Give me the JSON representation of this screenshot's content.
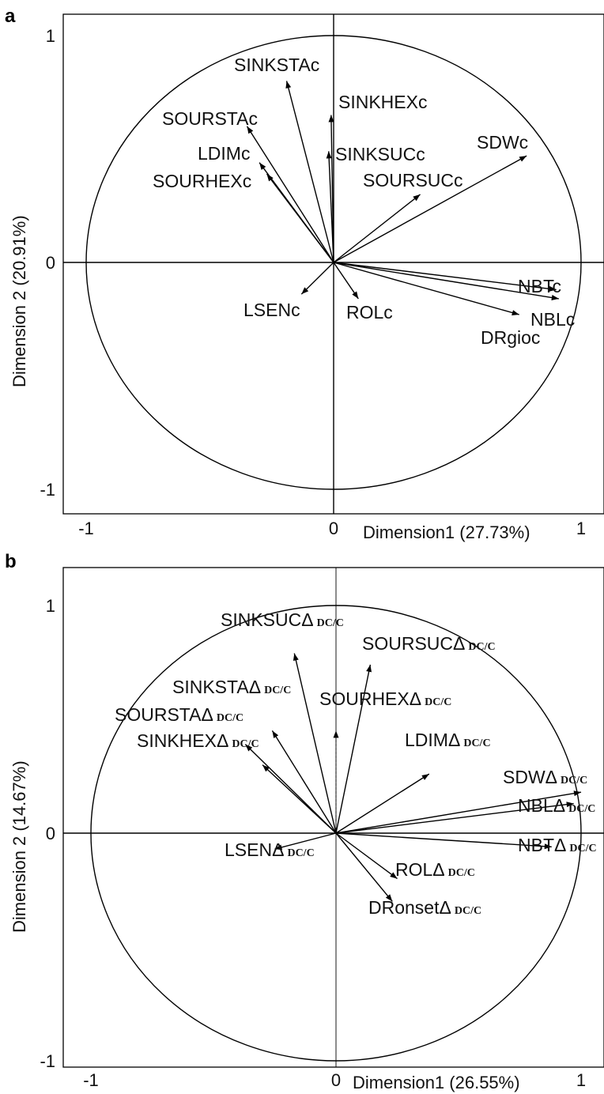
{
  "chart_data": [
    {
      "panel": "a",
      "type": "scatter",
      "subtype": "correlation-circle",
      "xlabel": "Dimension1 (27.73%)",
      "ylabel": "Dimension 2 (20.91%)",
      "xlim": [
        -1,
        1
      ],
      "ylim": [
        -1,
        1
      ],
      "xticks": [
        "-1",
        "0",
        "1"
      ],
      "yticks": [
        "1",
        "0",
        "-1"
      ],
      "unit_circle": true,
      "variables": [
        {
          "name": "SINKSTAc",
          "base": "SINKSTAc",
          "sub": "",
          "x": -0.19,
          "y": 0.8
        },
        {
          "name": "SINKHEXc",
          "base": "SINKHEXc",
          "sub": "",
          "x": -0.01,
          "y": 0.65
        },
        {
          "name": "SOURSTAc",
          "base": "SOURSTAc",
          "sub": "",
          "x": -0.35,
          "y": 0.6
        },
        {
          "name": "LDIMc",
          "base": "LDIMc",
          "sub": "",
          "x": -0.3,
          "y": 0.44
        },
        {
          "name": "SOURHEXc",
          "base": "SOURHEXc",
          "sub": "",
          "x": -0.27,
          "y": 0.39
        },
        {
          "name": "SINKSUCc",
          "base": "SINKSUCc",
          "sub": "",
          "x": -0.02,
          "y": 0.49
        },
        {
          "name": "SOURSUCc",
          "base": "SOURSUCc",
          "sub": "",
          "x": 0.35,
          "y": 0.3
        },
        {
          "name": "SDWc",
          "base": "SDWc",
          "sub": "",
          "x": 0.78,
          "y": 0.47
        },
        {
          "name": "NBTc",
          "base": "NBTc",
          "sub": "",
          "x": 0.9,
          "y": -0.12
        },
        {
          "name": "NBLc",
          "base": "NBLc",
          "sub": "",
          "x": 0.91,
          "y": -0.16
        },
        {
          "name": "DRgioc",
          "base": "DRgioc",
          "sub": "",
          "x": 0.75,
          "y": -0.23
        },
        {
          "name": "LSENc",
          "base": "LSENc",
          "sub": "",
          "x": -0.13,
          "y": -0.14
        },
        {
          "name": "ROLc",
          "base": "ROLc",
          "sub": "",
          "x": 0.1,
          "y": -0.16
        }
      ]
    },
    {
      "panel": "b",
      "type": "scatter",
      "subtype": "correlation-circle",
      "xlabel": "Dimension1 (26.55%)",
      "ylabel": "Dimension 2 (14.67%)",
      "xlim": [
        -1,
        1
      ],
      "ylim": [
        -1,
        1
      ],
      "xticks": [
        "-1",
        "0",
        "1"
      ],
      "yticks": [
        "1",
        "0",
        "-1"
      ],
      "unit_circle": true,
      "variables": [
        {
          "name": "SINKSUCΔ DC/C",
          "base": "SINKSUCΔ",
          "sub": "DC/C",
          "x": -0.17,
          "y": 0.79
        },
        {
          "name": "SOURSUCΔ DC/C",
          "base": "SOURSUCΔ",
          "sub": "DC/C",
          "x": 0.14,
          "y": 0.74
        },
        {
          "name": "SOURHEXΔ DC/C",
          "base": "SOURHEXΔ",
          "sub": "DC/C",
          "x": 0.0,
          "y": 0.45
        },
        {
          "name": "SINKSTAΔ DC/C",
          "base": "SINKSTAΔ",
          "sub": "DC/C",
          "x": -0.26,
          "y": 0.45
        },
        {
          "name": "SOURSTAΔ DC/C",
          "base": "SOURSTAΔ",
          "sub": "DC/C",
          "x": -0.37,
          "y": 0.39
        },
        {
          "name": "SINKHEXΔ DC/C",
          "base": "SINKHEXΔ",
          "sub": "DC/C",
          "x": -0.3,
          "y": 0.3
        },
        {
          "name": "LDIMΔ DC/C",
          "base": "LDIMΔ",
          "sub": "DC/C",
          "x": 0.38,
          "y": 0.26
        },
        {
          "name": "SDWΔ DC/C",
          "base": "SDWΔ",
          "sub": "DC/C",
          "x": 1.0,
          "y": 0.18
        },
        {
          "name": "NBLΔ DC/C",
          "base": "NBLΔ",
          "sub": "DC/C",
          "x": 0.97,
          "y": 0.13
        },
        {
          "name": "NBTΔ DC/C",
          "base": "NBTΔ",
          "sub": "DC/C",
          "x": 0.88,
          "y": -0.06
        },
        {
          "name": "LSENΔ DC/C",
          "base": "LSENΔ",
          "sub": "DC/C",
          "x": -0.25,
          "y": -0.07
        },
        {
          "name": "ROLΔ DC/C",
          "base": "ROLΔ",
          "sub": "DC/C",
          "x": 0.25,
          "y": -0.2
        },
        {
          "name": "DRonsetΔ DC/C",
          "base": "DRonsetΔ",
          "sub": "DC/C",
          "x": 0.23,
          "y": -0.3
        }
      ]
    }
  ]
}
